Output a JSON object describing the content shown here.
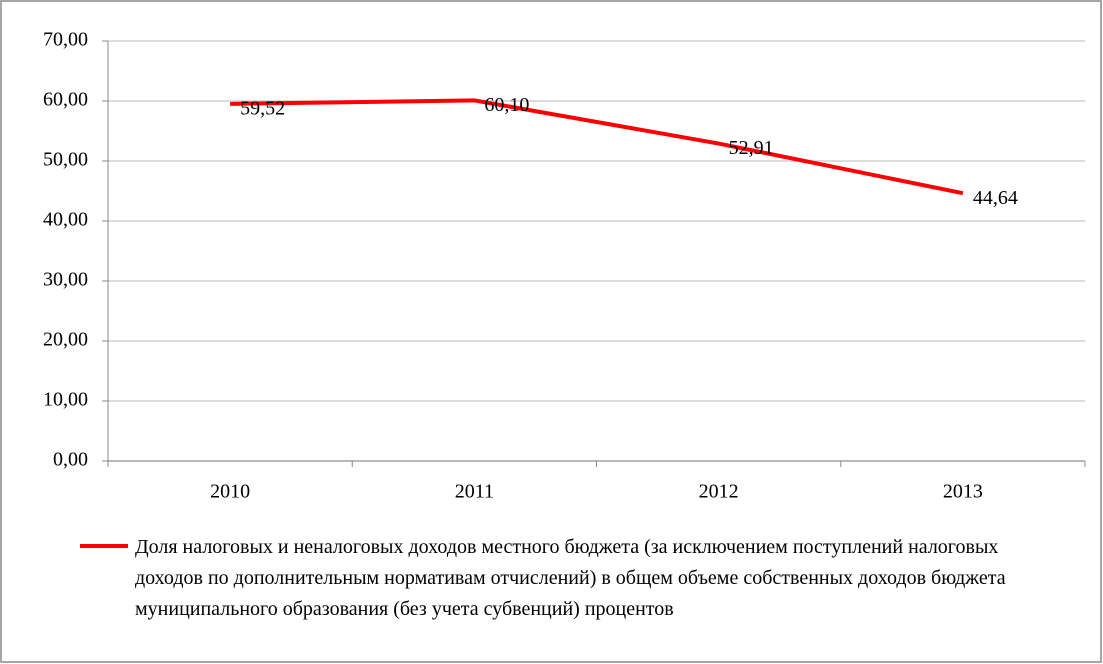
{
  "chart_data": {
    "type": "line",
    "categories": [
      "2010",
      "2011",
      "2012",
      "2013"
    ],
    "series": [
      {
        "name": "Доля налоговых и неналоговых доходов местного бюджета (за исключением поступлений налоговых доходов по дополнительным нормативам отчислений) в общем объеме собственных доходов бюджета муниципального образования (без учета субвенций) процентов",
        "color": "#ff0000",
        "values": [
          59.52,
          60.1,
          52.91,
          44.64
        ],
        "value_labels": [
          "59,52",
          "60,10",
          "52,91",
          "44,64"
        ]
      }
    ],
    "ylim": [
      0,
      70
    ],
    "yticks": [
      {
        "value": 0,
        "label": "0,00"
      },
      {
        "value": 10,
        "label": "10,00"
      },
      {
        "value": 20,
        "label": "20,00"
      },
      {
        "value": 30,
        "label": "30,00"
      },
      {
        "value": 40,
        "label": "40,00"
      },
      {
        "value": 50,
        "label": "50,00"
      },
      {
        "value": 60,
        "label": "60,00"
      },
      {
        "value": 70,
        "label": "70,00"
      }
    ],
    "grid": true,
    "legend": "bottom"
  }
}
